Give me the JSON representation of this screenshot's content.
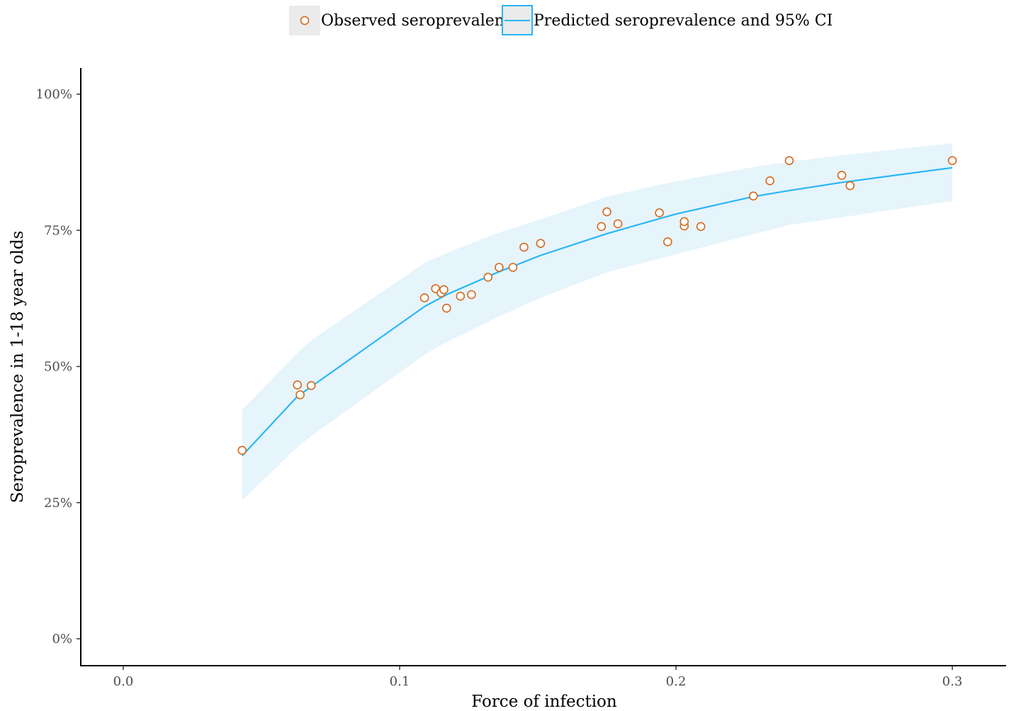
{
  "chart_data": {
    "type": "scatter",
    "title": "",
    "xlabel": "Force of infection",
    "ylabel": "Seroprevalence in 1-18 year olds",
    "xlim": [
      -0.015,
      0.32
    ],
    "ylim": [
      -0.05,
      1.05
    ],
    "x_ticks": [
      0.0,
      0.1,
      0.2,
      0.3
    ],
    "x_tick_labels": [
      "0.0",
      "0.1",
      "0.2",
      "0.3"
    ],
    "y_ticks": [
      0,
      0.25,
      0.5,
      0.75,
      1.0
    ],
    "y_tick_labels": [
      "0%",
      "25%",
      "50%",
      "75%",
      "100%"
    ],
    "grid": false,
    "legend_position": "top",
    "legend": [
      {
        "label": "Observed seroprevalence",
        "kind": "point",
        "color": "#d2691e"
      },
      {
        "label": "Predicted seroprevalence and 95% CI",
        "kind": "line",
        "color": "#29b6f6"
      }
    ],
    "series": [
      {
        "name": "Observed seroprevalence",
        "type": "scatter",
        "color": "#d2691e",
        "points": [
          [
            0.043,
            0.346
          ],
          [
            0.063,
            0.466
          ],
          [
            0.064,
            0.448
          ],
          [
            0.068,
            0.465
          ],
          [
            0.109,
            0.626
          ],
          [
            0.113,
            0.643
          ],
          [
            0.115,
            0.635
          ],
          [
            0.116,
            0.641
          ],
          [
            0.117,
            0.607
          ],
          [
            0.122,
            0.629
          ],
          [
            0.126,
            0.632
          ],
          [
            0.132,
            0.664
          ],
          [
            0.136,
            0.682
          ],
          [
            0.141,
            0.682
          ],
          [
            0.145,
            0.719
          ],
          [
            0.151,
            0.726
          ],
          [
            0.173,
            0.757
          ],
          [
            0.175,
            0.784
          ],
          [
            0.179,
            0.762
          ],
          [
            0.194,
            0.782
          ],
          [
            0.197,
            0.729
          ],
          [
            0.203,
            0.758
          ],
          [
            0.203,
            0.766
          ],
          [
            0.209,
            0.757
          ],
          [
            0.228,
            0.813
          ],
          [
            0.234,
            0.841
          ],
          [
            0.241,
            0.878
          ],
          [
            0.26,
            0.851
          ],
          [
            0.263,
            0.832
          ],
          [
            0.3,
            0.878
          ]
        ]
      },
      {
        "name": "Predicted seroprevalence and 95% CI",
        "type": "line",
        "color": "#29b6f6",
        "band_color": "#e6f4fb",
        "points": [
          [
            0.043,
            0.336,
            0.254,
            0.42
          ],
          [
            0.063,
            0.445,
            0.352,
            0.525
          ],
          [
            0.068,
            0.463,
            0.372,
            0.548
          ],
          [
            0.109,
            0.61,
            0.522,
            0.69
          ],
          [
            0.117,
            0.632,
            0.545,
            0.708
          ],
          [
            0.136,
            0.674,
            0.592,
            0.746
          ],
          [
            0.151,
            0.704,
            0.626,
            0.77
          ],
          [
            0.175,
            0.744,
            0.673,
            0.812
          ],
          [
            0.2,
            0.78,
            0.706,
            0.84
          ],
          [
            0.228,
            0.812,
            0.743,
            0.866
          ],
          [
            0.241,
            0.823,
            0.76,
            0.876
          ],
          [
            0.26,
            0.838,
            0.774,
            0.888
          ],
          [
            0.3,
            0.865,
            0.804,
            0.91
          ]
        ]
      }
    ]
  }
}
